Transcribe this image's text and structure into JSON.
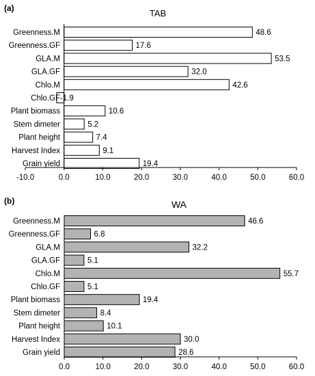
{
  "chart_data": [
    {
      "type": "bar",
      "orientation": "horizontal",
      "panel_label": "(a)",
      "title": "TAB",
      "categories": [
        "Greenness.M",
        "Greenness.GF",
        "GLA.M",
        "GLA.GF",
        "Chlo.M",
        "Chlo.GF",
        "Plant biomass",
        "Stem dimeter",
        "Plant height",
        "Harvest Index",
        "Grain yield"
      ],
      "values": [
        48.6,
        17.6,
        53.5,
        32.0,
        42.6,
        -1.9,
        10.6,
        5.2,
        7.4,
        9.1,
        19.4
      ],
      "value_labels": [
        "48.6",
        "17.6",
        "53.5",
        "32.0",
        "42.6",
        "-1.9",
        "10.6",
        "5.2",
        "7.4",
        "9.1",
        "19.4"
      ],
      "xlim": [
        -10,
        60
      ],
      "xticks": [
        "-10.0",
        "0.0",
        "10.0",
        "20.0",
        "30.0",
        "40.0",
        "50.0",
        "60.0"
      ],
      "bar_color": "#ffffff",
      "grid": false
    },
    {
      "type": "bar",
      "orientation": "horizontal",
      "panel_label": "(b)",
      "title": "WA",
      "categories": [
        "Greenness.M",
        "Greenness.GF",
        "GLA.M",
        "GLA.GF",
        "Chlo.M",
        "Chlo.GF",
        "Plant biomass",
        "Stem dimeter",
        "Plant height",
        "Harvest Index",
        "Grain yield"
      ],
      "values": [
        46.6,
        6.8,
        32.2,
        5.1,
        55.7,
        5.1,
        19.4,
        8.4,
        10.1,
        30.0,
        28.6
      ],
      "value_labels": [
        "46.6",
        "6.8",
        "32.2",
        "5.1",
        "55.7",
        "5.1",
        "19.4",
        "8.4",
        "10.1",
        "30.0",
        "28.6"
      ],
      "xlim": [
        0,
        60
      ],
      "xticks": [
        "0.0",
        "10.0",
        "20.0",
        "30.0",
        "40.0",
        "50.0",
        "60.0"
      ],
      "bar_color": "#b3b3b3",
      "grid": false
    }
  ]
}
